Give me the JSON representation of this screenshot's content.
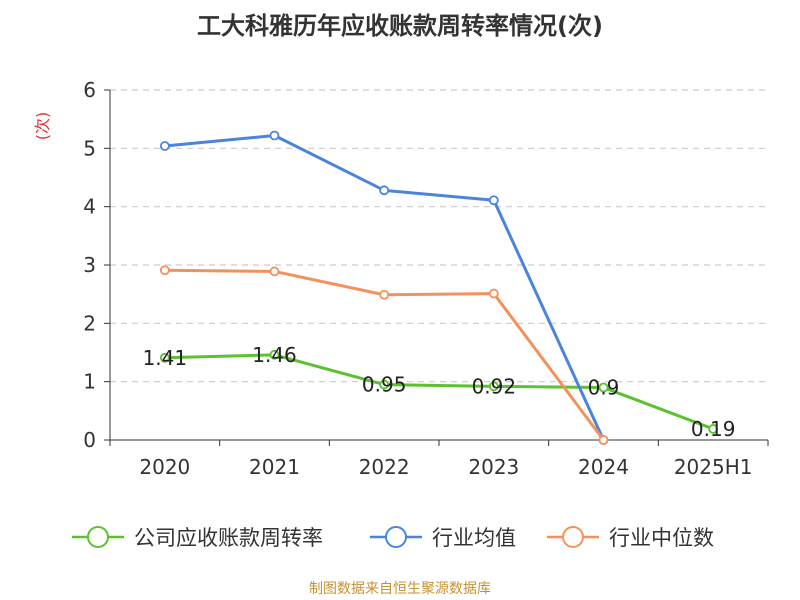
{
  "chart_data": {
    "type": "line",
    "title": "工大科雅历年应收账款周转率情况(次)",
    "ylabel": "(次)",
    "categories": [
      "2020",
      "2021",
      "2022",
      "2023",
      "2024",
      "2025H1"
    ],
    "ylim": [
      0,
      6
    ],
    "yticks": [
      0,
      1,
      2,
      3,
      4,
      5,
      6
    ],
    "grid": true,
    "legend_position": "bottom",
    "series": [
      {
        "name": "公司应收账款周转率",
        "color": "#5cc130",
        "show_labels": true,
        "values": [
          1.41,
          1.46,
          0.95,
          0.92,
          0.9,
          0.19
        ]
      },
      {
        "name": "行业均值",
        "color": "#4b84dd",
        "show_labels": false,
        "values": [
          5.04,
          5.22,
          4.28,
          4.11,
          0.0,
          null
        ]
      },
      {
        "name": "行业中位数",
        "color": "#f4915a",
        "show_labels": false,
        "values": [
          2.91,
          2.89,
          2.49,
          2.51,
          0.0,
          null
        ]
      }
    ]
  },
  "source_note": "制图数据来自恒生聚源数据库",
  "colors": {
    "ylabel": "#e03030",
    "axis": "#333333",
    "grid": "#cccccc",
    "source": "#c8922e"
  }
}
